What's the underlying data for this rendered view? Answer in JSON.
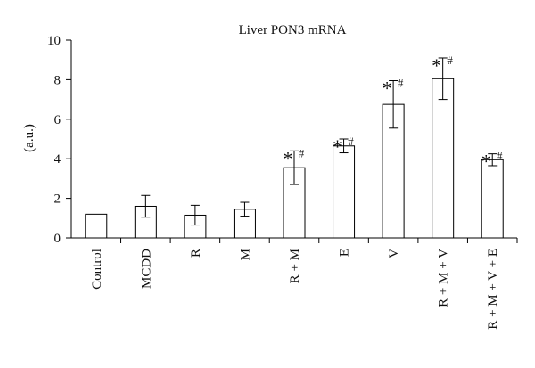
{
  "chart_data": {
    "type": "bar",
    "title": "Liver PON3 mRNA",
    "xlabel": "",
    "ylabel": "(a.u.)",
    "ylim": [
      0,
      10
    ],
    "yticks": [
      0,
      2,
      4,
      6,
      8,
      10
    ],
    "grid": false,
    "legend": "none",
    "categories": [
      "Control",
      "MCDD",
      "R",
      "M",
      "R + M",
      "E",
      "V",
      "R + M + V",
      "R + M + V + E"
    ],
    "series": [
      {
        "values": [
          1.2,
          1.6,
          1.15,
          1.45,
          3.55,
          4.65,
          6.75,
          8.05,
          3.95
        ],
        "error": [
          0.0,
          0.55,
          0.5,
          0.35,
          0.85,
          0.35,
          1.2,
          1.05,
          0.3
        ]
      }
    ],
    "annotations": [
      {
        "category": "R + M",
        "star": "*",
        "hash": "#"
      },
      {
        "category": "E",
        "star": "*",
        "hash": "#"
      },
      {
        "category": "V",
        "star": "*",
        "hash": "#"
      },
      {
        "category": "R + M + V",
        "star": "*",
        "hash": "#"
      },
      {
        "category": "R + M + V + E",
        "star": "*",
        "hash": "#"
      }
    ]
  }
}
